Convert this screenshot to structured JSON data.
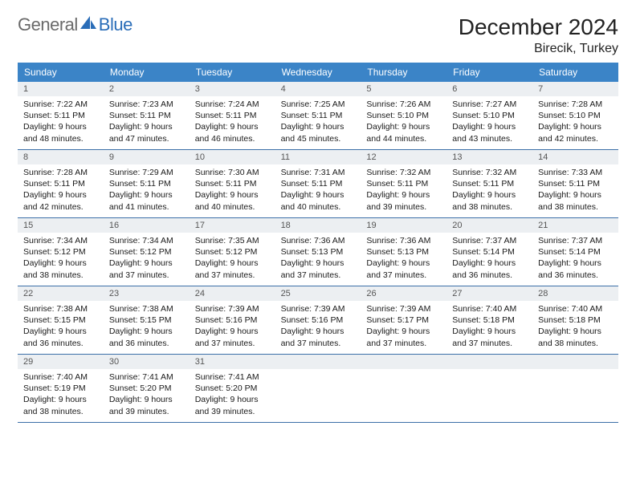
{
  "brand": {
    "part1": "General",
    "part2": "Blue"
  },
  "title": "December 2024",
  "location": "Birecik, Turkey",
  "colors": {
    "header_bg": "#3b84c7",
    "header_text": "#ffffff",
    "daynum_bg": "#eceff2",
    "daynum_text": "#555555",
    "body_text": "#1a1a1a",
    "rule": "#3b6fa8",
    "logo_gray": "#6a6a6a",
    "logo_blue": "#2a6db8"
  },
  "days_of_week": [
    "Sunday",
    "Monday",
    "Tuesday",
    "Wednesday",
    "Thursday",
    "Friday",
    "Saturday"
  ],
  "weeks": [
    [
      {
        "n": "1",
        "sr": "7:22 AM",
        "ss": "5:11 PM",
        "dl": "9 hours and 48 minutes."
      },
      {
        "n": "2",
        "sr": "7:23 AM",
        "ss": "5:11 PM",
        "dl": "9 hours and 47 minutes."
      },
      {
        "n": "3",
        "sr": "7:24 AM",
        "ss": "5:11 PM",
        "dl": "9 hours and 46 minutes."
      },
      {
        "n": "4",
        "sr": "7:25 AM",
        "ss": "5:11 PM",
        "dl": "9 hours and 45 minutes."
      },
      {
        "n": "5",
        "sr": "7:26 AM",
        "ss": "5:10 PM",
        "dl": "9 hours and 44 minutes."
      },
      {
        "n": "6",
        "sr": "7:27 AM",
        "ss": "5:10 PM",
        "dl": "9 hours and 43 minutes."
      },
      {
        "n": "7",
        "sr": "7:28 AM",
        "ss": "5:10 PM",
        "dl": "9 hours and 42 minutes."
      }
    ],
    [
      {
        "n": "8",
        "sr": "7:28 AM",
        "ss": "5:11 PM",
        "dl": "9 hours and 42 minutes."
      },
      {
        "n": "9",
        "sr": "7:29 AM",
        "ss": "5:11 PM",
        "dl": "9 hours and 41 minutes."
      },
      {
        "n": "10",
        "sr": "7:30 AM",
        "ss": "5:11 PM",
        "dl": "9 hours and 40 minutes."
      },
      {
        "n": "11",
        "sr": "7:31 AM",
        "ss": "5:11 PM",
        "dl": "9 hours and 40 minutes."
      },
      {
        "n": "12",
        "sr": "7:32 AM",
        "ss": "5:11 PM",
        "dl": "9 hours and 39 minutes."
      },
      {
        "n": "13",
        "sr": "7:32 AM",
        "ss": "5:11 PM",
        "dl": "9 hours and 38 minutes."
      },
      {
        "n": "14",
        "sr": "7:33 AM",
        "ss": "5:11 PM",
        "dl": "9 hours and 38 minutes."
      }
    ],
    [
      {
        "n": "15",
        "sr": "7:34 AM",
        "ss": "5:12 PM",
        "dl": "9 hours and 38 minutes."
      },
      {
        "n": "16",
        "sr": "7:34 AM",
        "ss": "5:12 PM",
        "dl": "9 hours and 37 minutes."
      },
      {
        "n": "17",
        "sr": "7:35 AM",
        "ss": "5:12 PM",
        "dl": "9 hours and 37 minutes."
      },
      {
        "n": "18",
        "sr": "7:36 AM",
        "ss": "5:13 PM",
        "dl": "9 hours and 37 minutes."
      },
      {
        "n": "19",
        "sr": "7:36 AM",
        "ss": "5:13 PM",
        "dl": "9 hours and 37 minutes."
      },
      {
        "n": "20",
        "sr": "7:37 AM",
        "ss": "5:14 PM",
        "dl": "9 hours and 36 minutes."
      },
      {
        "n": "21",
        "sr": "7:37 AM",
        "ss": "5:14 PM",
        "dl": "9 hours and 36 minutes."
      }
    ],
    [
      {
        "n": "22",
        "sr": "7:38 AM",
        "ss": "5:15 PM",
        "dl": "9 hours and 36 minutes."
      },
      {
        "n": "23",
        "sr": "7:38 AM",
        "ss": "5:15 PM",
        "dl": "9 hours and 36 minutes."
      },
      {
        "n": "24",
        "sr": "7:39 AM",
        "ss": "5:16 PM",
        "dl": "9 hours and 37 minutes."
      },
      {
        "n": "25",
        "sr": "7:39 AM",
        "ss": "5:16 PM",
        "dl": "9 hours and 37 minutes."
      },
      {
        "n": "26",
        "sr": "7:39 AM",
        "ss": "5:17 PM",
        "dl": "9 hours and 37 minutes."
      },
      {
        "n": "27",
        "sr": "7:40 AM",
        "ss": "5:18 PM",
        "dl": "9 hours and 37 minutes."
      },
      {
        "n": "28",
        "sr": "7:40 AM",
        "ss": "5:18 PM",
        "dl": "9 hours and 38 minutes."
      }
    ],
    [
      {
        "n": "29",
        "sr": "7:40 AM",
        "ss": "5:19 PM",
        "dl": "9 hours and 38 minutes."
      },
      {
        "n": "30",
        "sr": "7:41 AM",
        "ss": "5:20 PM",
        "dl": "9 hours and 39 minutes."
      },
      {
        "n": "31",
        "sr": "7:41 AM",
        "ss": "5:20 PM",
        "dl": "9 hours and 39 minutes."
      },
      {
        "empty": true
      },
      {
        "empty": true
      },
      {
        "empty": true
      },
      {
        "empty": true
      }
    ]
  ],
  "labels": {
    "sunrise": "Sunrise:",
    "sunset": "Sunset:",
    "daylight": "Daylight:"
  }
}
